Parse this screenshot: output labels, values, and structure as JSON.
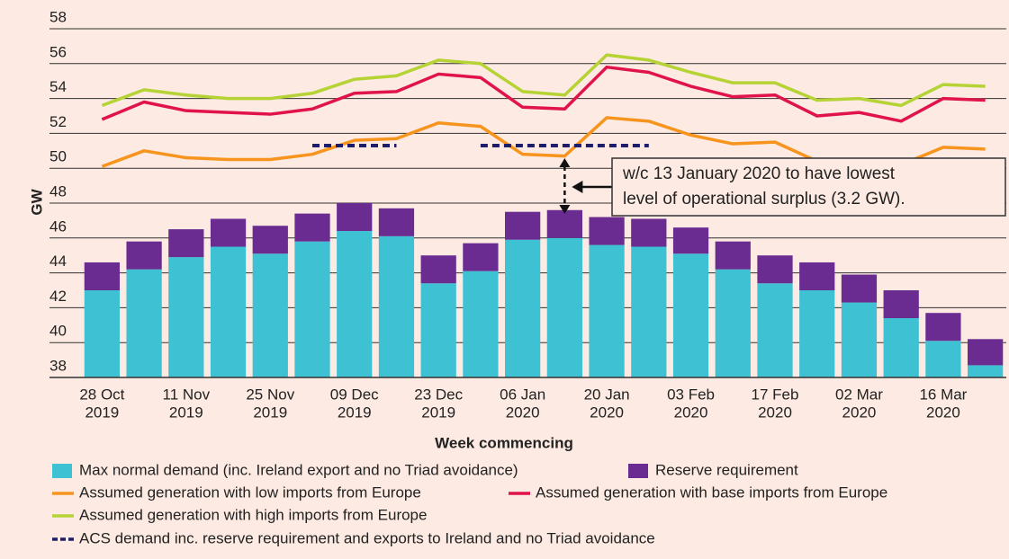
{
  "chart_data": {
    "type": "combo",
    "y_label": "GW",
    "x_label": "Week commencing",
    "categories": [
      [
        "28 Oct",
        "2019"
      ],
      null,
      [
        "11 Nov",
        "2019"
      ],
      null,
      [
        "25 Nov",
        "2019"
      ],
      null,
      [
        "09 Dec",
        "2019"
      ],
      null,
      [
        "23 Dec",
        "2019"
      ],
      null,
      [
        "06 Jan",
        "2020"
      ],
      null,
      [
        "20 Jan",
        "2020"
      ],
      null,
      [
        "03 Feb",
        "2020"
      ],
      null,
      [
        "17 Feb",
        "2020"
      ],
      null,
      [
        "02 Mar",
        "2020"
      ],
      null,
      [
        "16 Mar",
        "2020"
      ],
      null
    ],
    "series": [
      {
        "name": "Max normal demand (inc. Ireland export and no Triad avoidance)",
        "type": "bar",
        "color": "#3ec1d3",
        "values": [
          43.0,
          44.2,
          44.9,
          45.5,
          45.1,
          45.8,
          46.4,
          46.1,
          43.4,
          44.1,
          45.9,
          46.0,
          45.6,
          45.5,
          45.1,
          44.2,
          43.4,
          43.0,
          42.3,
          41.4,
          40.1,
          38.7
        ]
      },
      {
        "name": "Reserve requirement",
        "type": "bar",
        "color": "#6a2c91",
        "values": [
          1.6,
          1.6,
          1.6,
          1.6,
          1.6,
          1.6,
          1.6,
          1.6,
          1.6,
          1.6,
          1.6,
          1.6,
          1.6,
          1.6,
          1.5,
          1.6,
          1.6,
          1.6,
          1.6,
          1.6,
          1.6,
          1.5
        ]
      },
      {
        "name": "Assumed generation with low imports from Europe",
        "type": "line",
        "color": "#f7941d",
        "values": [
          50.1,
          51.0,
          50.6,
          50.5,
          50.5,
          50.8,
          51.6,
          51.7,
          52.6,
          52.4,
          50.8,
          50.7,
          52.9,
          52.7,
          51.9,
          51.4,
          51.5,
          50.4,
          50.3,
          50.2,
          51.2,
          51.1
        ]
      },
      {
        "name": "Assumed generation with base imports from Europe",
        "type": "line",
        "color": "#e0134a",
        "values": [
          52.8,
          53.8,
          53.3,
          53.2,
          53.1,
          53.4,
          54.3,
          54.4,
          55.4,
          55.2,
          53.5,
          53.4,
          55.8,
          55.5,
          54.7,
          54.1,
          54.2,
          53.0,
          53.2,
          52.7,
          54.0,
          53.9
        ]
      },
      {
        "name": "Assumed generation with high imports from Europe",
        "type": "line",
        "color": "#b5d334",
        "values": [
          53.6,
          54.5,
          54.2,
          54.0,
          54.0,
          54.3,
          55.1,
          55.3,
          56.2,
          56.0,
          54.4,
          54.2,
          56.5,
          56.2,
          55.5,
          54.9,
          54.9,
          53.9,
          54.0,
          53.6,
          54.8,
          54.7
        ]
      },
      {
        "name": "ACS demand inc. reserve requirement and exports to Ireland and no Triad avoidance",
        "type": "dashed",
        "color": "#1d1d6b",
        "values": [
          null,
          null,
          null,
          null,
          null,
          51.3,
          51.3,
          51.3,
          null,
          51.3,
          51.3,
          51.3,
          51.3,
          51.3,
          null,
          null,
          null,
          null,
          null,
          null,
          null,
          null
        ]
      }
    ],
    "ylim": [
      38,
      58
    ],
    "yticks": [
      38,
      40,
      42,
      44,
      46,
      48,
      50,
      52,
      54,
      56,
      58
    ],
    "grid": true,
    "annotation": [
      "w/c 13 January 2020 to have lowest",
      "level of operational surplus (3.2 GW)."
    ]
  }
}
